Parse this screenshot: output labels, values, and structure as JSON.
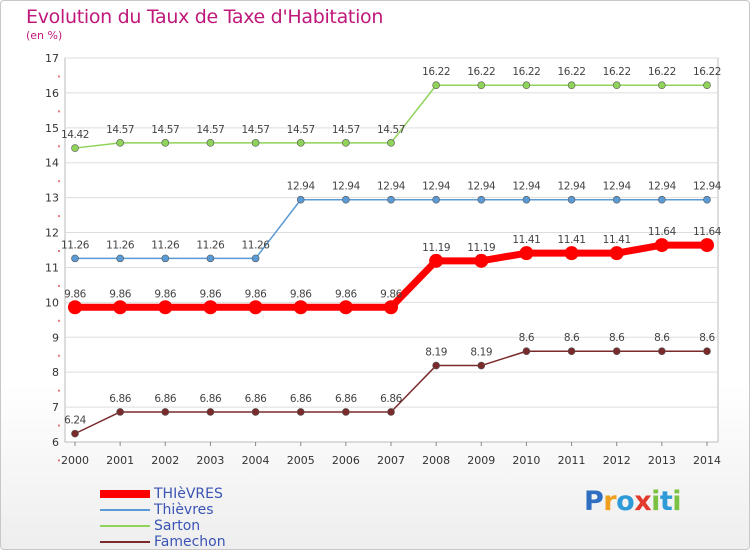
{
  "title": "Evolution du Taux de Taxe d'Habitation",
  "unit": "(en %)",
  "logo": {
    "letters": [
      {
        "ch": "P",
        "color": "#2f6fc1"
      },
      {
        "ch": "r",
        "color": "#f0a020"
      },
      {
        "ch": "o",
        "color": "#2f9ad8"
      },
      {
        "ch": "x",
        "color": "#e23b2e"
      },
      {
        "ch": "i",
        "color": "#7cc242"
      },
      {
        "ch": "t",
        "color": "#2f9ad8"
      },
      {
        "ch": "i",
        "color": "#7cc242"
      }
    ]
  },
  "chart_data": {
    "type": "line",
    "x": [
      2000,
      2001,
      2002,
      2003,
      2004,
      2005,
      2006,
      2007,
      2008,
      2009,
      2010,
      2011,
      2012,
      2013,
      2014
    ],
    "ylim": [
      6,
      17
    ],
    "yticks": [
      6,
      7,
      8,
      9,
      10,
      11,
      12,
      13,
      14,
      15,
      16,
      17
    ],
    "grid": true,
    "legend_position": "bottom-left",
    "series": [
      {
        "name": "THIèVRES",
        "color": "#ff0000",
        "width": 7,
        "marker": 7,
        "values": [
          9.86,
          9.86,
          9.86,
          9.86,
          9.86,
          9.86,
          9.86,
          9.86,
          11.19,
          11.19,
          11.41,
          11.41,
          11.41,
          11.64,
          11.64
        ]
      },
      {
        "name": "Thièvres",
        "color": "#5b9bd5",
        "width": 1.5,
        "marker": 3.5,
        "values": [
          11.26,
          11.26,
          11.26,
          11.26,
          11.26,
          12.94,
          12.94,
          12.94,
          12.94,
          12.94,
          12.94,
          12.94,
          12.94,
          12.94,
          12.94
        ]
      },
      {
        "name": "Sarton",
        "color": "#8fd35a",
        "width": 1.5,
        "marker": 3.5,
        "values": [
          14.42,
          14.57,
          14.57,
          14.57,
          14.57,
          14.57,
          14.57,
          14.57,
          16.22,
          16.22,
          16.22,
          16.22,
          16.22,
          16.22,
          16.22
        ]
      },
      {
        "name": "Famechon",
        "color": "#7a2a2a",
        "width": 1.5,
        "marker": 3.5,
        "values": [
          6.24,
          6.86,
          6.86,
          6.86,
          6.86,
          6.86,
          6.86,
          6.86,
          8.19,
          8.19,
          8.6,
          8.6,
          8.6,
          8.6,
          8.6
        ]
      }
    ],
    "labels": [
      [
        "9.86",
        "9.86",
        "9.86",
        "9.86",
        "9.86",
        "9.86",
        "9.86",
        "9.86",
        "11.19",
        "11.19",
        "11.41",
        "11.41",
        "11.41",
        "11.64",
        "11.64"
      ],
      [
        "11.26",
        "11.26",
        "11.26",
        "11.26",
        "11.26",
        "12.94",
        "12.94",
        "12.94",
        "12.94",
        "12.94",
        "12.94",
        "12.94",
        "12.94",
        "12.94",
        "12.94"
      ],
      [
        "14.42",
        "14.57",
        "14.57",
        "14.57",
        "14.57",
        "14.57",
        "14.57",
        "14.57",
        "16.22",
        "16.22",
        "16.22",
        "16.22",
        "16.22",
        "16.22",
        "16.22"
      ],
      [
        "6.24",
        "6.86",
        "6.86",
        "6.86",
        "6.86",
        "6.86",
        "6.86",
        "6.86",
        "8.19",
        "8.19",
        "8.6",
        "8.6",
        "8.6",
        "8.6",
        "8.6"
      ]
    ]
  }
}
